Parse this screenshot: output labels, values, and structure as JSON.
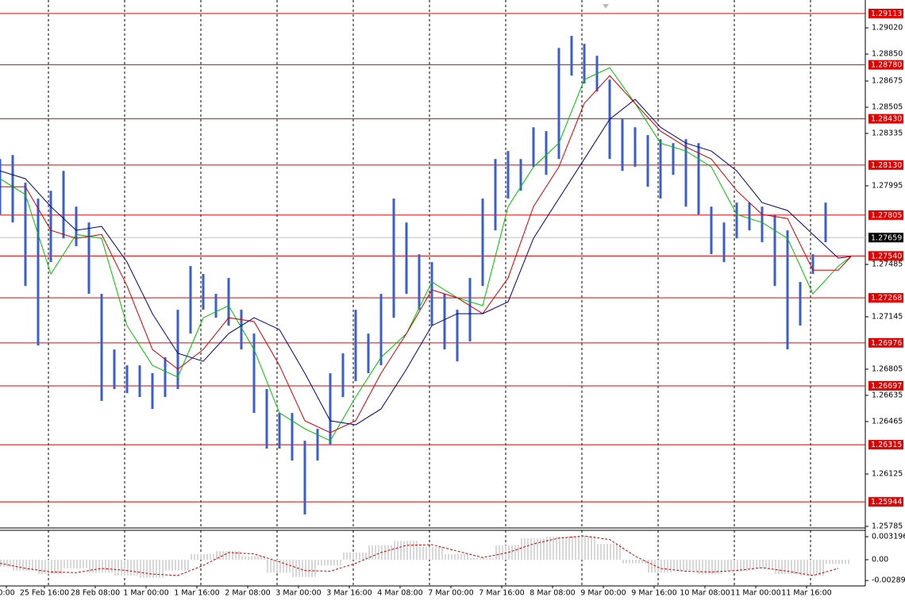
{
  "chart_data": [
    {
      "type": "hilo",
      "color": "#3a5fcd",
      "x": [
        0,
        4,
        8,
        12,
        16,
        20,
        24,
        28,
        32,
        36,
        40,
        44,
        48,
        52,
        56,
        60,
        64,
        68,
        72,
        76,
        80,
        84,
        88,
        92,
        96,
        100,
        104,
        108,
        112,
        116,
        120,
        124,
        128,
        132,
        136,
        140,
        144,
        148,
        152,
        156,
        160,
        164,
        168,
        172,
        176,
        180,
        184,
        188,
        192,
        196,
        200,
        204,
        208,
        212,
        216,
        220,
        224,
        228,
        232,
        236,
        240,
        244,
        248,
        252,
        256,
        260
      ],
      "high": [
        1.28169,
        1.28195,
        1.28015,
        1.27912,
        1.27963,
        1.28092,
        1.2786,
        1.27757,
        1.27294,
        1.26933,
        1.2683,
        1.2683,
        1.26779,
        1.26882,
        1.27191,
        1.27474,
        1.27423,
        1.27294,
        1.27397,
        1.27191,
        1.27036,
        1.26676,
        1.26521,
        1.26521,
        1.26341,
        1.26418,
        1.26779,
        1.26908,
        1.27191,
        1.27036,
        1.27294,
        1.27912,
        1.27757,
        1.27551,
        1.275,
        1.27294,
        1.27191,
        1.27397,
        1.27912,
        1.28169,
        1.28221,
        1.28169,
        1.28375,
        1.2835,
        1.2889,
        1.28968,
        1.28916,
        1.28839,
        1.28684,
        1.28427,
        1.28375,
        1.28324,
        1.28298,
        1.28272,
        1.28298,
        1.28272,
        1.2786,
        1.27757,
        1.27886,
        1.27886,
        1.2786,
        1.27809,
        1.27706,
        1.27371,
        1.27551,
        1.27886
      ],
      "low": [
        1.27809,
        1.27757,
        1.27345,
        1.26959,
        1.275,
        1.27654,
        1.27603,
        1.27294,
        1.26599,
        1.26676,
        1.2665,
        1.26624,
        1.26547,
        1.26624,
        1.26676,
        1.27036,
        1.27191,
        1.27139,
        1.27088,
        1.26933,
        1.26521,
        1.2629,
        1.2629,
        1.26212,
        1.25862,
        1.26212,
        1.26315,
        1.26624,
        1.26727,
        1.26779,
        1.2683,
        1.27139,
        1.27294,
        1.27191,
        1.27088,
        1.26933,
        1.26856,
        1.26985,
        1.27345,
        1.27706,
        1.27912,
        1.27963,
        1.28118,
        1.28066,
        1.28169,
        1.2871,
        1.28659,
        1.28607,
        1.28169,
        1.28092,
        1.28118,
        1.27989,
        1.27912,
        1.28066,
        1.2786,
        1.27809,
        1.27551,
        1.275,
        1.27654,
        1.27706,
        1.27629,
        1.27345,
        1.26933,
        1.27088,
        1.27423,
        1.27629
      ],
      "series": [
        {
          "color": "#00c000",
          "x": [
            0,
            8,
            16,
            24,
            32,
            40,
            48,
            56,
            64,
            72,
            80,
            88,
            96,
            104,
            112,
            120,
            128,
            136,
            144,
            152,
            160,
            168,
            176,
            184,
            192,
            200,
            208,
            216,
            224,
            232,
            240,
            248,
            256,
            264,
            268
          ],
          "values": [
            1.28041,
            1.27938,
            1.27423,
            1.2768,
            1.27654,
            1.27088,
            1.2683,
            1.26753,
            1.27139,
            1.27217,
            1.26933,
            1.26521,
            1.26418,
            1.26341,
            1.26624,
            1.26882,
            1.27036,
            1.27371,
            1.27268,
            1.27217,
            1.2786,
            1.28118,
            1.28272,
            1.28684,
            1.28762,
            1.2853,
            1.28272,
            1.28221,
            1.28118,
            1.27809,
            1.27757,
            1.27654,
            1.27294,
            1.27474,
            1.27536
          ]
        },
        {
          "color": "#d00000",
          "x": [
            0,
            8,
            16,
            24,
            32,
            40,
            48,
            56,
            64,
            72,
            80,
            88,
            96,
            104,
            112,
            120,
            128,
            136,
            144,
            152,
            160,
            168,
            176,
            184,
            192,
            200,
            208,
            216,
            224,
            232,
            240,
            248,
            256,
            264,
            268
          ],
          "values": [
            1.27989,
            1.27989,
            1.27706,
            1.27654,
            1.2768,
            1.27345,
            1.26933,
            1.26805,
            1.26933,
            1.27139,
            1.27114,
            1.2683,
            1.2647,
            1.26393,
            1.2647,
            1.26779,
            1.27036,
            1.2732,
            1.27268,
            1.27165,
            1.27397,
            1.2786,
            1.28118,
            1.2853,
            1.2871,
            1.2853,
            1.2835,
            1.28247,
            1.28169,
            1.27963,
            1.27809,
            1.27783,
            1.27448,
            1.27448,
            1.27536
          ]
        },
        {
          "color": "#000080",
          "x": [
            0,
            8,
            16,
            24,
            32,
            40,
            48,
            56,
            64,
            72,
            80,
            88,
            96,
            104,
            112,
            120,
            128,
            136,
            144,
            152,
            160,
            168,
            176,
            184,
            192,
            200,
            208,
            216,
            224,
            232,
            240,
            248,
            256,
            264,
            268
          ],
          "values": [
            1.28092,
            1.28041,
            1.2786,
            1.27706,
            1.27732,
            1.275,
            1.27165,
            1.26908,
            1.26856,
            1.27036,
            1.27139,
            1.27062,
            1.26779,
            1.2647,
            1.26444,
            1.26547,
            1.26805,
            1.27088,
            1.27165,
            1.27165,
            1.27242,
            1.27654,
            1.27912,
            1.28169,
            1.28427,
            1.28556,
            1.28375,
            1.28272,
            1.28221,
            1.28092,
            1.27886,
            1.27835,
            1.2768,
            1.27526,
            1.27536
          ]
        }
      ],
      "level_color": "#e00000",
      "levels": [
        {
          "value": 1.29113,
          "label": "1.29113"
        },
        {
          "value": 1.2878,
          "label": "1.28780"
        },
        {
          "value": 1.2843,
          "label": "1.28430"
        },
        {
          "value": 1.2813,
          "label": "1.28130"
        },
        {
          "value": 1.27805,
          "label": "1.27805"
        },
        {
          "value": 1.2754,
          "label": "1.27540"
        },
        {
          "value": 1.27268,
          "label": "1.27268"
        },
        {
          "value": 1.26976,
          "label": "1.26976"
        },
        {
          "value": 1.26697,
          "label": "1.26697"
        },
        {
          "value": 1.26315,
          "label": "1.26315"
        },
        {
          "value": 1.25944,
          "label": "1.25944"
        }
      ],
      "current_price": {
        "value": 1.27659,
        "label": "1.27659"
      },
      "xlim": [
        0,
        272.5
      ],
      "xticks": [
        {
          "value": 2,
          "label": "0:00"
        },
        {
          "value": 14,
          "label": "25 Feb 16:00"
        },
        {
          "value": 30,
          "label": "28 Feb 08:00"
        },
        {
          "value": 46,
          "label": "1 Mar 00:00"
        },
        {
          "value": 62,
          "label": "1 Mar 16:00"
        },
        {
          "value": 78,
          "label": "2 Mar 08:00"
        },
        {
          "value": 94,
          "label": "3 Mar 00:00"
        },
        {
          "value": 110,
          "label": "3 Mar 16:00"
        },
        {
          "value": 126,
          "label": "4 Mar 08:00"
        },
        {
          "value": 142,
          "label": "7 Mar 00:00"
        },
        {
          "value": 158,
          "label": "7 Mar 16:00"
        },
        {
          "value": 174,
          "label": "8 Mar 08:00"
        },
        {
          "value": 190,
          "label": "9 Mar 00:00"
        },
        {
          "value": 206,
          "label": "9 Mar 16:00"
        },
        {
          "value": 222,
          "label": "10 Mar 08:00"
        },
        {
          "value": 238,
          "label": "11 Mar 00:00"
        },
        {
          "value": 254,
          "label": "11 Mar 16:00"
        }
      ],
      "ylim": [
        1.25785,
        1.29175
      ],
      "yticks": [
        {
          "value": 1.2902,
          "label": "1.29020"
        },
        {
          "value": 1.2885,
          "label": "1.28850"
        },
        {
          "value": 1.28675,
          "label": "1.28675"
        },
        {
          "value": 1.28505,
          "label": "1.28505"
        },
        {
          "value": 1.28335,
          "label": "1.28335"
        },
        {
          "value": 1.27995,
          "label": "1.27995"
        },
        {
          "value": 1.27485,
          "label": "1.27485"
        },
        {
          "value": 1.27145,
          "label": "1.27145"
        },
        {
          "value": 1.26805,
          "label": "1.26805"
        },
        {
          "value": 1.26635,
          "label": "1.26635"
        },
        {
          "value": 1.26465,
          "label": "1.26465"
        },
        {
          "value": 1.26125,
          "label": "1.26125"
        },
        {
          "value": 1.25785,
          "label": "1.25785"
        }
      ]
    },
    {
      "type": "macd",
      "color": "#b0b0b0",
      "signal_color": "#d00000",
      "x": [
        0,
        8,
        16,
        24,
        32,
        40,
        48,
        56,
        64,
        72,
        80,
        88,
        96,
        104,
        112,
        120,
        128,
        136,
        144,
        152,
        160,
        168,
        176,
        184,
        192,
        200,
        208,
        216,
        224,
        232,
        240,
        248,
        256,
        264
      ],
      "values": [
        -0.001,
        -0.0015,
        -0.002,
        -0.0012,
        -0.0018,
        -0.0022,
        -0.0025,
        -0.0015,
        0.0008,
        0.0012,
        0.0005,
        -0.0018,
        -0.0024,
        -0.0008,
        0.001,
        0.002,
        0.0026,
        0.0018,
        0.0008,
        0.0002,
        0.002,
        0.003,
        0.0032,
        0.0033,
        0.0022,
        -0.0005,
        -0.0018,
        -0.0015,
        -0.002,
        -0.0016,
        -0.0012,
        -0.002,
        -0.0022,
        -0.0006
      ],
      "signal": [
        -0.0005,
        -0.0012,
        -0.0017,
        -0.0018,
        -0.0012,
        -0.0015,
        -0.002,
        -0.0022,
        -0.0008,
        0.001,
        0.0008,
        -0.0003,
        -0.0015,
        -0.0016,
        -0.0005,
        0.001,
        0.002,
        0.0021,
        0.0012,
        0.0003,
        0.001,
        0.0022,
        0.003,
        0.0033,
        0.0028,
        0.0005,
        -0.0012,
        -0.0016,
        -0.0017,
        -0.0015,
        -0.0011,
        -0.0016,
        -0.0022,
        -0.0012
      ],
      "ylim": [
        -0.00364,
        0.00408
      ],
      "yticks": [
        0.003196,
        {
          "value": 0,
          "label": "0.00"
        },
        -0.002893
      ]
    }
  ]
}
